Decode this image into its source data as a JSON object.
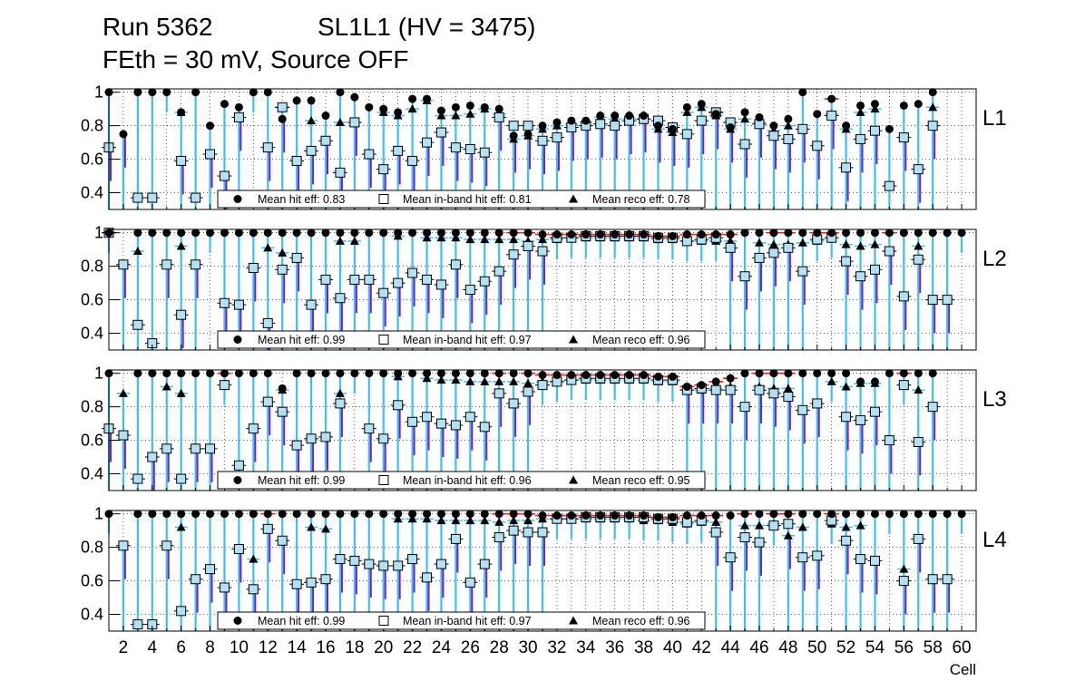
{
  "header": {
    "run": "Run 5362",
    "chamber": "SL1L1 (HV = 3475)",
    "conditions": "FEth = 30 mV, Source OFF"
  },
  "chart_data": {
    "type": "scatter",
    "xlabel": "Cell",
    "xlim": [
      1,
      61
    ],
    "ylim": [
      0.3,
      1.02
    ],
    "y_ticks": [
      0.4,
      0.6,
      0.8,
      1
    ],
    "x_ticks": [
      2,
      4,
      6,
      8,
      10,
      12,
      14,
      16,
      18,
      20,
      22,
      24,
      26,
      28,
      30,
      32,
      34,
      36,
      38,
      40,
      42,
      44,
      46,
      48,
      50,
      52,
      54,
      56,
      58,
      60
    ],
    "grid": true,
    "colors": {
      "hit": "#000000",
      "inband_fill": "#b3e0f2",
      "reco": "#000000",
      "err_cyan": "#3fbfef",
      "err_purple": "#7b1fbf",
      "err_red": "#ff1a1a"
    },
    "legend_labels": [
      "Mean hit  eff:",
      "Mean in-band hit eff:",
      "Mean reco eff:"
    ],
    "panels": [
      {
        "label": "L1",
        "means": [
          "0.83",
          "0.81",
          "0.78"
        ],
        "hit": [
          1,
          0.75,
          1,
          1,
          1,
          0.88,
          1,
          0.8,
          0.93,
          0.91,
          1,
          1,
          0.84,
          0.95,
          0.95,
          0.86,
          1,
          0.97,
          0.91,
          0.9,
          0.88,
          0.96,
          0.96,
          0.89,
          0.91,
          0.92,
          0.91,
          0.9,
          0.74,
          0.75,
          0.8,
          0.82,
          0.83,
          0.83,
          0.86,
          0.86,
          0.86,
          0.86,
          0.8,
          0.78,
          0.91,
          0.93,
          0.87,
          0.79,
          0.88,
          0.85,
          0.8,
          0.84,
          1,
          0.87,
          0.96,
          0.8,
          0.92,
          0.93,
          0.78,
          0.92,
          0.93,
          1,
          null,
          null
        ],
        "inband": [
          0.67,
          null,
          0.37,
          0.37,
          null,
          0.59,
          0.37,
          0.63,
          0.5,
          0.85,
          null,
          0.67,
          0.91,
          0.59,
          0.65,
          0.71,
          0.52,
          0.82,
          0.63,
          0.54,
          0.65,
          0.59,
          0.7,
          0.76,
          0.67,
          0.66,
          0.64,
          0.85,
          0.8,
          0.8,
          0.71,
          0.73,
          0.79,
          0.8,
          0.81,
          0.8,
          0.83,
          0.84,
          0.83,
          0.79,
          0.75,
          0.83,
          0.88,
          0.82,
          0.69,
          0.81,
          0.74,
          0.72,
          0.78,
          0.68,
          0.86,
          0.55,
          0.72,
          0.77,
          0.44,
          0.73,
          0.54,
          0.8,
          null,
          null
        ],
        "reco": [
          null,
          null,
          null,
          null,
          null,
          0.88,
          null,
          null,
          null,
          null,
          null,
          null,
          0.91,
          null,
          0.83,
          null,
          0.82,
          null,
          null,
          0.88,
          0.86,
          0.9,
          0.95,
          0.86,
          0.86,
          0.87,
          0.9,
          0.87,
          0.72,
          0.74,
          0.78,
          0.8,
          0.81,
          0.82,
          0.85,
          0.84,
          0.84,
          0.84,
          0.78,
          0.76,
          0.88,
          0.91,
          0.86,
          0.78,
          0.84,
          0.82,
          0.77,
          0.8,
          null,
          null,
          0.87,
          0.78,
          0.88,
          0.9,
          null,
          null,
          null,
          0.91,
          null,
          null
        ]
      },
      {
        "label": "L2",
        "means": [
          "0.99",
          "0.97",
          "0.96"
        ],
        "hit": [
          1,
          null,
          1,
          1,
          1,
          1,
          1,
          1,
          1,
          1,
          1,
          1,
          1,
          1,
          1,
          1,
          1,
          1,
          1,
          1,
          1,
          1,
          1,
          1,
          1,
          1,
          1,
          1,
          1,
          1,
          0.99,
          0.99,
          0.99,
          0.99,
          0.99,
          0.99,
          0.99,
          0.99,
          0.98,
          0.98,
          0.99,
          0.99,
          0.99,
          0.99,
          1,
          1,
          1,
          1,
          1,
          1,
          1,
          1,
          1,
          1,
          1,
          1,
          1,
          1,
          1,
          1
        ],
        "inband": [
          1,
          0.81,
          0.45,
          0.34,
          0.81,
          0.51,
          0.81,
          null,
          0.58,
          0.57,
          0.79,
          0.46,
          0.78,
          0.85,
          0.57,
          0.72,
          0.61,
          0.72,
          0.72,
          0.64,
          0.7,
          0.76,
          0.72,
          0.69,
          0.81,
          0.66,
          0.71,
          0.77,
          0.87,
          0.92,
          0.89,
          0.97,
          0.97,
          0.98,
          0.98,
          0.98,
          0.98,
          0.98,
          0.97,
          0.97,
          0.95,
          0.96,
          0.97,
          0.91,
          0.74,
          0.85,
          0.88,
          0.91,
          0.77,
          0.96,
          0.97,
          0.83,
          0.74,
          0.78,
          0.89,
          0.62,
          0.84,
          0.6,
          0.6,
          null
        ],
        "reco": [
          1,
          null,
          0.89,
          null,
          null,
          0.92,
          null,
          null,
          null,
          null,
          null,
          0.91,
          0.88,
          null,
          null,
          null,
          0.95,
          0.95,
          null,
          null,
          0.98,
          null,
          0.97,
          0.97,
          0.97,
          0.96,
          0.96,
          0.96,
          0.96,
          0.95,
          0.96,
          0.96,
          0.97,
          0.97,
          0.97,
          0.97,
          0.97,
          0.97,
          0.96,
          0.96,
          0.95,
          0.95,
          0.95,
          0.95,
          null,
          0.94,
          0.93,
          0.93,
          0.94,
          0.95,
          null,
          0.93,
          0.92,
          0.93,
          0.89,
          null,
          0.92,
          null,
          null,
          null
        ]
      },
      {
        "label": "L3",
        "means": [
          "0.99",
          "0.96",
          "0.95"
        ],
        "hit": [
          1,
          null,
          1,
          1,
          1,
          1,
          1,
          1,
          1,
          1,
          1,
          1,
          0.91,
          1,
          1,
          1,
          1,
          1,
          1,
          1,
          1,
          1,
          1,
          1,
          1,
          1,
          1,
          1,
          1,
          1,
          0.99,
          0.99,
          0.99,
          0.99,
          0.99,
          0.99,
          0.99,
          0.99,
          0.98,
          0.98,
          0.92,
          0.93,
          0.95,
          0.97,
          1,
          1,
          1,
          1,
          1,
          1,
          1,
          1,
          0.95,
          0.95,
          1,
          1,
          1,
          1,
          null,
          null
        ],
        "inband": [
          0.67,
          0.63,
          0.37,
          0.5,
          0.55,
          0.37,
          0.55,
          0.55,
          0.93,
          0.45,
          0.67,
          0.83,
          0.77,
          0.57,
          0.61,
          0.62,
          0.82,
          null,
          0.67,
          0.61,
          0.81,
          0.71,
          0.74,
          0.7,
          0.69,
          0.74,
          0.68,
          0.88,
          0.82,
          0.89,
          0.93,
          0.95,
          0.96,
          0.97,
          0.97,
          0.97,
          0.97,
          0.97,
          0.96,
          0.96,
          0.9,
          0.91,
          0.9,
          0.9,
          0.8,
          0.9,
          0.88,
          0.86,
          0.78,
          0.82,
          null,
          0.74,
          0.72,
          0.77,
          0.6,
          0.93,
          0.59,
          0.8,
          null,
          null
        ],
        "reco": [
          null,
          0.88,
          null,
          null,
          0.92,
          0.88,
          null,
          null,
          null,
          null,
          null,
          null,
          0.9,
          null,
          null,
          null,
          0.88,
          null,
          null,
          null,
          0.98,
          null,
          0.97,
          0.96,
          0.96,
          0.95,
          0.95,
          0.95,
          0.95,
          0.94,
          0.95,
          0.95,
          0.96,
          0.96,
          0.96,
          0.96,
          0.96,
          0.96,
          0.95,
          0.95,
          0.9,
          0.9,
          0.91,
          0.92,
          null,
          0.92,
          0.91,
          0.91,
          null,
          null,
          0.95,
          0.92,
          0.94,
          0.94,
          null,
          null,
          0.9,
          null,
          null,
          null
        ]
      },
      {
        "label": "L4",
        "means": [
          "0.99",
          "0.97",
          "0.96"
        ],
        "hit": [
          1,
          null,
          1,
          1,
          1,
          1,
          1,
          1,
          1,
          1,
          1,
          1,
          1,
          1,
          1,
          1,
          1,
          1,
          1,
          1,
          1,
          1,
          1,
          1,
          1,
          1,
          1,
          1,
          1,
          1,
          0.99,
          0.99,
          0.99,
          0.99,
          0.99,
          0.99,
          0.99,
          0.99,
          0.98,
          0.98,
          0.99,
          0.99,
          0.99,
          0.99,
          1,
          1,
          1,
          1,
          1,
          1,
          1,
          1,
          1,
          1,
          1,
          1,
          1,
          1,
          1,
          1
        ],
        "inband": [
          null,
          0.81,
          0.34,
          0.34,
          0.81,
          0.42,
          0.61,
          0.67,
          0.56,
          0.79,
          0.55,
          0.91,
          0.84,
          0.58,
          0.59,
          0.61,
          0.73,
          0.72,
          0.7,
          0.69,
          0.69,
          0.73,
          0.62,
          0.7,
          0.85,
          0.59,
          0.7,
          0.86,
          0.9,
          0.89,
          0.89,
          0.97,
          0.97,
          0.98,
          0.98,
          0.98,
          0.98,
          0.98,
          0.97,
          0.97,
          0.95,
          0.96,
          0.89,
          0.74,
          0.86,
          0.83,
          0.93,
          0.94,
          0.74,
          0.75,
          0.96,
          0.84,
          0.73,
          0.72,
          null,
          0.6,
          0.85,
          0.61,
          0.61,
          null
        ],
        "reco": [
          null,
          null,
          null,
          null,
          null,
          0.92,
          null,
          null,
          null,
          null,
          0.73,
          null,
          null,
          null,
          0.92,
          0.91,
          null,
          null,
          null,
          null,
          0.97,
          0.97,
          0.97,
          0.96,
          0.96,
          0.96,
          0.96,
          0.95,
          0.96,
          0.96,
          0.97,
          0.97,
          0.97,
          0.97,
          0.97,
          0.97,
          0.97,
          0.96,
          0.96,
          0.95,
          0.94,
          0.95,
          0.95,
          null,
          0.93,
          0.93,
          0.94,
          0.87,
          0.92,
          null,
          0.94,
          0.92,
          0.93,
          null,
          null,
          0.67,
          null,
          null,
          null,
          null
        ]
      }
    ]
  }
}
